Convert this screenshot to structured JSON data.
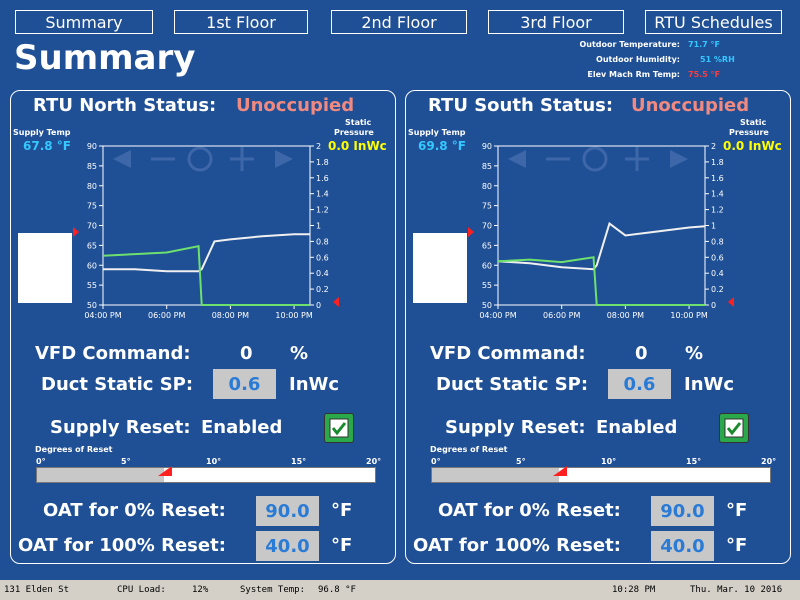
{
  "nav": {
    "summary": "Summary",
    "floor1": "1st Floor",
    "floor2": "2nd Floor",
    "floor3": "3rd Floor",
    "rtu_schedules": "RTU Schedules"
  },
  "page_title": "Summary",
  "weather": {
    "outdoor_temp_label": "Outdoor Temperature:",
    "outdoor_temp_value": "71.7 °F",
    "outdoor_humidity_label": "Outdoor Humidity:",
    "outdoor_humidity_value": "51 %RH",
    "elev_temp_label": "Elev Mach Rm Temp:",
    "elev_temp_value": "75.5 °F"
  },
  "colors": {
    "cyan": "#35c8ff",
    "red": "#ff3b3b",
    "yellow": "#ffff00",
    "salmon": "#f08a80",
    "green_line": "#6ee06e",
    "white_line": "#f0f0f0"
  },
  "common": {
    "supply_temp_label": "Supply Temp",
    "static_pressure_label_1": "Static",
    "static_pressure_label_2": "Pressure",
    "vfd_label": "VFD Command:",
    "vfd_unit": "%",
    "duct_label": "Duct Static SP:",
    "duct_unit": "InWc",
    "reset_label": "Supply Reset:",
    "degrees_label": "Degrees of Reset",
    "oat0_label": "OAT for 0% Reset:",
    "oat100_label": "OAT for 100% Reset:",
    "deg_unit": "°F",
    "scale_ticks": [
      "0°",
      "5°",
      "10°",
      "15°",
      "20°"
    ],
    "left_axis": [
      "90",
      "85",
      "80",
      "75",
      "70",
      "65",
      "60",
      "55",
      "50"
    ],
    "right_axis": [
      "2",
      "1.8",
      "1.6",
      "1.4",
      "1.2",
      "1",
      "0.8",
      "0.6",
      "0.4",
      "0.2",
      "0"
    ],
    "time_axis": [
      "04:00 PM",
      "06:00 PM",
      "08:00 PM",
      "10:00 PM"
    ]
  },
  "rtu_north": {
    "title": "RTU North Status:",
    "status": "Unoccupied",
    "supply_temp": "67.8 °F",
    "static_pressure": "0.0 InWc",
    "vfd_value": "0",
    "duct_sp": "0.6",
    "reset_state": "Enabled",
    "degrees_of_reset": 7.5,
    "oat0": "90.0",
    "oat100": "40.0"
  },
  "rtu_south": {
    "title": "RTU South Status:",
    "status": "Unoccupied",
    "supply_temp": "69.8 °F",
    "static_pressure": "0.0 InWc",
    "vfd_value": "0",
    "duct_sp": "0.6",
    "reset_state": "Enabled",
    "degrees_of_reset": 7.5,
    "oat0": "90.0",
    "oat100": "40.0"
  },
  "chart_data": [
    {
      "type": "line",
      "title": "RTU North",
      "x": [
        16.0,
        17.0,
        18.0,
        19.0,
        19.1,
        19.5,
        20.0,
        21.0,
        22.0,
        22.5
      ],
      "xlim": [
        16.0,
        22.5
      ],
      "ylim": [
        50,
        90
      ],
      "y2lim": [
        0,
        2
      ],
      "series": [
        {
          "name": "Supply Temp (°F)",
          "axis": "left",
          "color": "#f0f0f0",
          "values": [
            59,
            59,
            58.5,
            58.5,
            59,
            66,
            66.5,
            67.3,
            67.8,
            67.8
          ]
        },
        {
          "name": "Static Pressure (InWc)",
          "axis": "right",
          "color": "#6ee06e",
          "values": [
            0.62,
            0.64,
            0.66,
            0.74,
            0.0,
            0.0,
            0.0,
            0.0,
            0.0,
            0.0
          ]
        }
      ]
    },
    {
      "type": "line",
      "title": "RTU South",
      "x": [
        16.0,
        17.0,
        18.0,
        19.0,
        19.1,
        19.5,
        20.0,
        21.0,
        22.0,
        22.5
      ],
      "xlim": [
        16.0,
        22.5
      ],
      "ylim": [
        50,
        90
      ],
      "y2lim": [
        0,
        2
      ],
      "series": [
        {
          "name": "Supply Temp (°F)",
          "axis": "left",
          "color": "#f0f0f0",
          "values": [
            61,
            60.5,
            59.5,
            59,
            60,
            70.5,
            67.5,
            68.5,
            69.5,
            69.8
          ]
        },
        {
          "name": "Static Pressure (InWc)",
          "axis": "right",
          "color": "#6ee06e",
          "values": [
            0.55,
            0.57,
            0.54,
            0.6,
            0.0,
            0.0,
            0.0,
            0.0,
            0.0,
            0.0
          ]
        }
      ]
    }
  ],
  "status_bar": {
    "address": "131 Elden St",
    "cpu_label": "CPU Load:",
    "cpu_value": "12%",
    "systemp_label": "System Temp:",
    "systemp_value": "96.8 °F",
    "time": "10:28 PM",
    "date": "Thu. Mar. 10 2016"
  }
}
